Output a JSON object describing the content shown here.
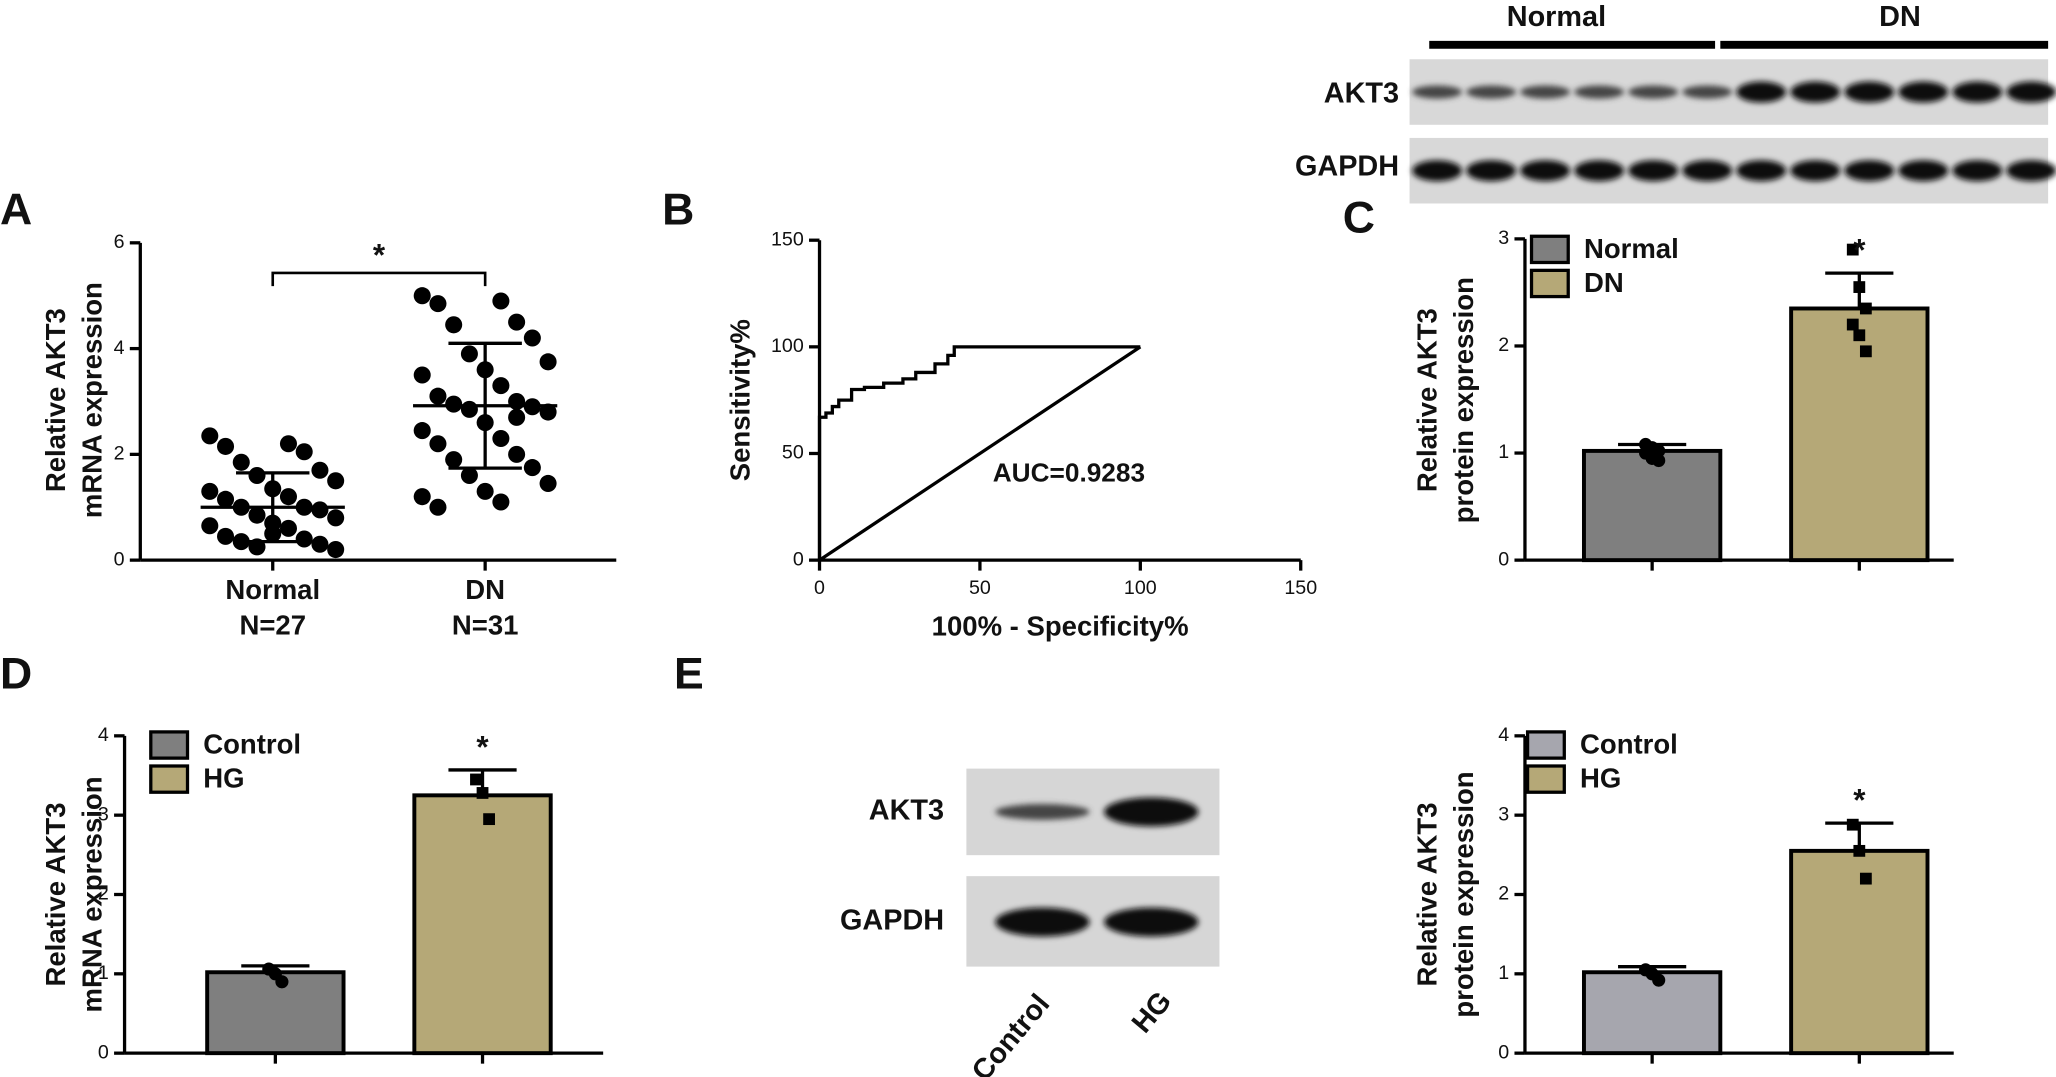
{
  "chart_data": [
    {
      "type": "dot",
      "panel": "A",
      "ylabel": [
        "Relative AKT3",
        "mRNA expression"
      ],
      "categories": [
        "Normal",
        "DN"
      ],
      "sublabels": [
        "N=27",
        "N=31"
      ],
      "points": [
        [
          2.35,
          2.2,
          2.15,
          2.05,
          1.85,
          1.7,
          1.6,
          1.5,
          1.35,
          1.3,
          1.2,
          1.15,
          1.0,
          1.0,
          0.95,
          0.85,
          0.8,
          0.7,
          0.65,
          0.6,
          0.45,
          0.4,
          0.35,
          0.3,
          0.25,
          0.2,
          0.5
        ],
        [
          5.0,
          4.9,
          4.85,
          4.5,
          4.45,
          4.2,
          3.9,
          3.75,
          3.6,
          3.5,
          3.3,
          3.1,
          3.0,
          2.95,
          2.9,
          2.85,
          2.8,
          2.6,
          2.45,
          2.3,
          2.2,
          2.0,
          1.9,
          1.75,
          1.6,
          1.45,
          1.3,
          1.2,
          1.1,
          1.0,
          2.7
        ]
      ],
      "means": [
        1.0,
        2.92
      ],
      "sds": [
        0.65,
        1.18
      ],
      "color": "#000000",
      "annotation": "*",
      "ylim": [
        0,
        6
      ],
      "yticks": [
        0,
        2,
        4,
        6
      ]
    },
    {
      "type": "line",
      "panel": "B",
      "ylabel": [
        "Sensitivity%"
      ],
      "xlabel": "100% - Specificity%",
      "annotation": "AUC=0.9283",
      "series": [
        {
          "color": "#000000",
          "x": [
            0,
            0,
            2,
            2,
            4,
            4,
            6,
            6,
            10,
            10,
            14,
            14,
            20,
            20,
            26,
            26,
            30,
            30,
            36,
            36,
            40,
            40,
            42,
            42,
            100
          ],
          "values": [
            0,
            67,
            67,
            69,
            69,
            72,
            72,
            75,
            75,
            80,
            80,
            81,
            81,
            83,
            83,
            85,
            85,
            88,
            88,
            92,
            92,
            96,
            96,
            100,
            100
          ]
        },
        {
          "color": "#000000",
          "x": [
            0,
            100
          ],
          "values": [
            0,
            100
          ]
        }
      ],
      "xlim": [
        0,
        150
      ],
      "xticks": [
        0,
        50,
        100,
        150
      ],
      "ylim": [
        0,
        150
      ],
      "yticks": [
        0,
        50,
        100,
        150
      ]
    },
    {
      "type": "bar",
      "panel": "C",
      "ylabel": [
        "Relative AKT3",
        "protein expression"
      ],
      "annotation": "*",
      "series": [
        {
          "name": "Normal",
          "color": "#7f7f7f",
          "marker": "circle",
          "values": [
            1.02
          ],
          "errors": [
            0.06
          ],
          "points": [
            1.08,
            1.05,
            1.02,
            1.0,
            0.95,
            0.93
          ]
        },
        {
          "name": "DN",
          "color": "#b5a877",
          "marker": "square",
          "values": [
            2.35
          ],
          "errors": [
            0.33
          ],
          "points": [
            2.9,
            2.55,
            2.35,
            2.2,
            2.1,
            1.95
          ]
        }
      ],
      "ylim": [
        0,
        3
      ],
      "yticks": [
        0,
        1,
        2,
        3
      ]
    },
    {
      "type": "bar",
      "panel": "D",
      "ylabel": [
        "Relative AKT3",
        "mRNA expression"
      ],
      "annotation": "*",
      "series": [
        {
          "name": "Control",
          "color": "#7f7f7f",
          "marker": "circle",
          "values": [
            1.02
          ],
          "errors": [
            0.08
          ],
          "points": [
            1.06,
            1.0,
            0.9
          ]
        },
        {
          "name": "HG",
          "color": "#b5a877",
          "marker": "square",
          "values": [
            3.25
          ],
          "errors": [
            0.32
          ],
          "points": [
            3.45,
            3.28,
            2.95
          ]
        }
      ],
      "ylim": [
        0,
        4
      ],
      "yticks": [
        0,
        1,
        2,
        3,
        4
      ]
    },
    {
      "type": "bar",
      "ylabel": [
        "Relative AKT3",
        "protein expression"
      ],
      "annotation": "*",
      "series": [
        {
          "name": "Control",
          "color": "#a6a6ae",
          "marker": "circle",
          "values": [
            1.02
          ],
          "errors": [
            0.07
          ],
          "points": [
            1.05,
            1.0,
            0.92
          ]
        },
        {
          "name": "HG",
          "color": "#b5a877",
          "marker": "square",
          "values": [
            2.55
          ],
          "errors": [
            0.35
          ],
          "points": [
            2.88,
            2.55,
            2.2
          ]
        }
      ],
      "ylim": [
        0,
        4
      ],
      "yticks": [
        0,
        1,
        2,
        3,
        4
      ]
    }
  ],
  "blots": [
    {
      "groups": [
        "Normal",
        "DN"
      ],
      "rows": [
        "AKT3",
        "GAPDH"
      ]
    },
    {
      "panel": "E",
      "lanes": [
        "Control",
        "HG"
      ],
      "rows": [
        "AKT3",
        "GAPDH"
      ]
    }
  ]
}
